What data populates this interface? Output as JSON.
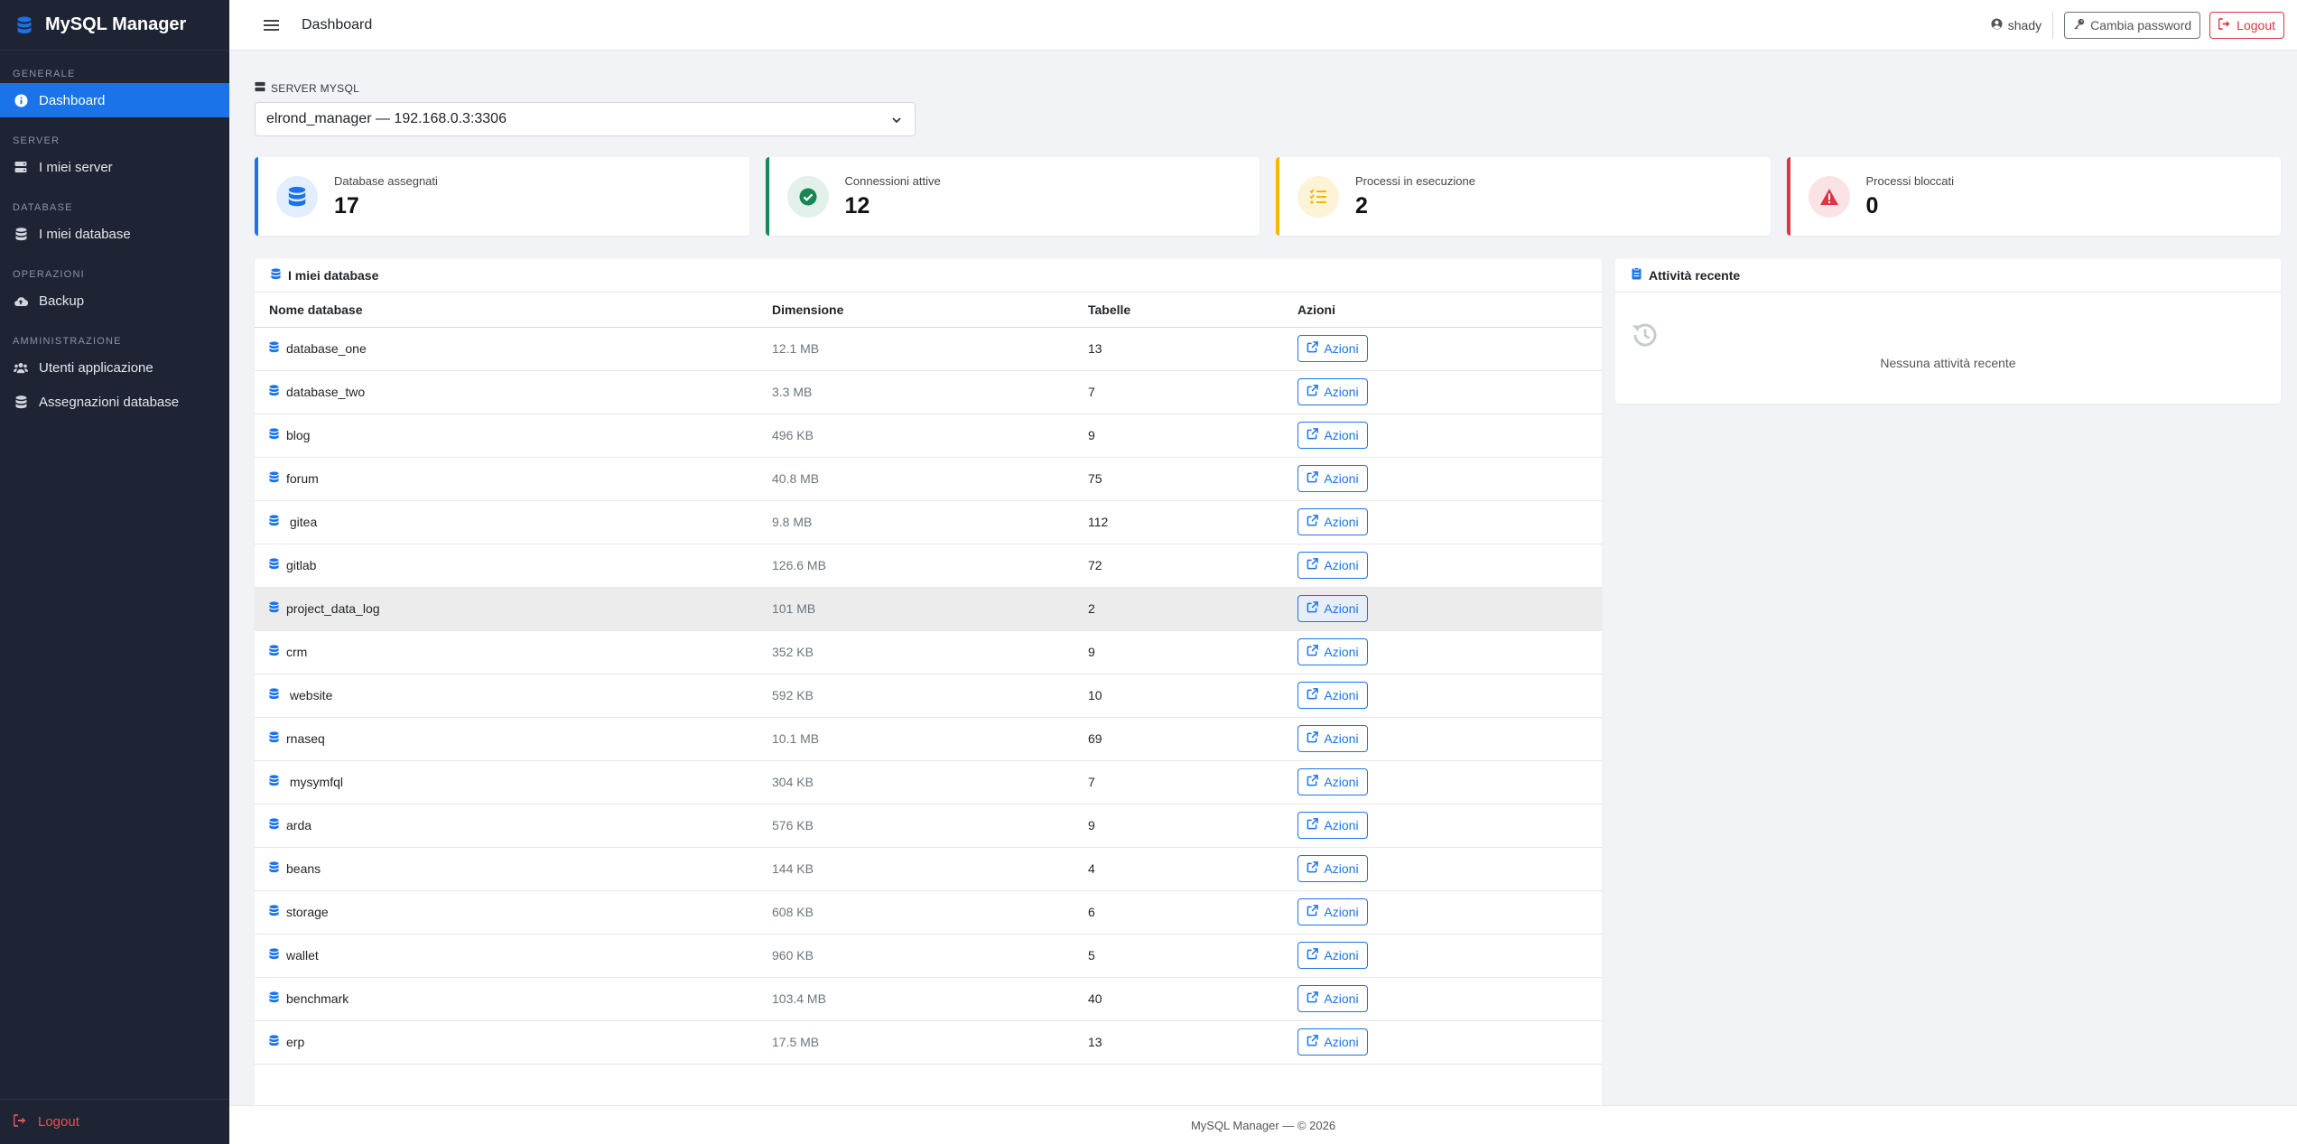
{
  "app": {
    "name": "MySQL Manager"
  },
  "colors": {
    "primary": "#1a73e8",
    "success": "#198754",
    "warning": "#f5b800",
    "danger": "#dc3545",
    "sidebar": "#1e2433"
  },
  "sidebar": {
    "sections": [
      {
        "title": "GENERALE",
        "items": [
          {
            "label": "Dashboard",
            "icon": "info-circle-icon"
          }
        ]
      },
      {
        "title": "SERVER",
        "items": [
          {
            "label": "I miei server",
            "icon": "server-icon"
          }
        ]
      },
      {
        "title": "DATABASE",
        "items": [
          {
            "label": "I miei database",
            "icon": "database-icon"
          }
        ]
      },
      {
        "title": "OPERAZIONI",
        "items": [
          {
            "label": "Backup",
            "icon": "cloud-upload-icon"
          }
        ]
      },
      {
        "title": "AMMINISTRAZIONE",
        "items": [
          {
            "label": "Utenti applicazione",
            "icon": "users-icon"
          },
          {
            "label": "Assegnazioni database",
            "icon": "database-icon"
          }
        ]
      }
    ],
    "logout_label": "Logout"
  },
  "topbar": {
    "title": "Dashboard",
    "user": "shady",
    "change_password_label": "Cambia password",
    "logout_label": "Logout"
  },
  "server": {
    "label": "SERVER MYSQL",
    "selected": "elrond_manager — 192.168.0.3:3306"
  },
  "stats": [
    {
      "label": "Database assegnati",
      "value": "17"
    },
    {
      "label": "Connessioni attive",
      "value": "12"
    },
    {
      "label": "Processi in esecuzione",
      "value": "2"
    },
    {
      "label": "Processi bloccati",
      "value": "0"
    }
  ],
  "databases": {
    "title": "I miei database",
    "columns": [
      "Nome database",
      "Dimensione",
      "Tabelle",
      "Azioni"
    ],
    "action_label": "Azioni",
    "rows": [
      {
        "name": "database_one",
        "size": "12.1 MB",
        "tables": "13"
      },
      {
        "name": "database_two",
        "size": "3.3 MB",
        "tables": "7"
      },
      {
        "name": "blog",
        "size": "496 KB",
        "tables": "9"
      },
      {
        "name": "forum",
        "size": "40.8 MB",
        "tables": "75"
      },
      {
        "name": " gitea",
        "size": "9.8 MB",
        "tables": "112"
      },
      {
        "name": "gitlab",
        "size": "126.6 MB",
        "tables": "72"
      },
      {
        "name": "project_data_log",
        "size": "101 MB",
        "tables": "2"
      },
      {
        "name": "crm",
        "size": "352 KB",
        "tables": "9"
      },
      {
        "name": " website",
        "size": "592 KB",
        "tables": "10"
      },
      {
        "name": "rnaseq",
        "size": "10.1 MB",
        "tables": "69"
      },
      {
        "name": " mysymfql",
        "size": "304 KB",
        "tables": "7"
      },
      {
        "name": "arda",
        "size": "576 KB",
        "tables": "9"
      },
      {
        "name": "beans",
        "size": "144 KB",
        "tables": "4"
      },
      {
        "name": "storage",
        "size": "608 KB",
        "tables": "6"
      },
      {
        "name": "wallet",
        "size": "960 KB",
        "tables": "5"
      },
      {
        "name": "benchmark",
        "size": "103.4 MB",
        "tables": "40"
      },
      {
        "name": "erp",
        "size": "17.5 MB",
        "tables": "13"
      }
    ]
  },
  "activity": {
    "title": "Attività recente",
    "empty": "Nessuna attività recente"
  },
  "footer": {
    "text": "MySQL Manager — © 2026"
  }
}
